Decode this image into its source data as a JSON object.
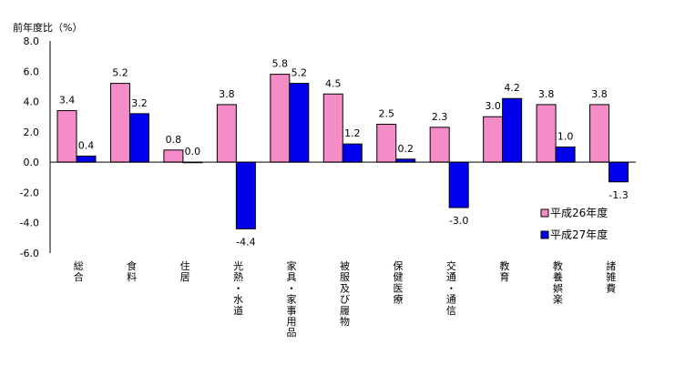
{
  "chart_data": {
    "type": "bar",
    "ylabel": "前年度比（%）",
    "ylim": [
      -6.0,
      8.0
    ],
    "ytick_step": 2.0,
    "yticks": [
      "8.0",
      "6.0",
      "4.0",
      "2.0",
      "0.0",
      "-2.0",
      "-4.0",
      "-6.0"
    ],
    "categories": [
      "総合",
      "食料",
      "住居",
      "光熱・水道",
      "家具・家事用品",
      "被服及び履物",
      "保健医療",
      "交通・通信",
      "教育",
      "教養娯楽",
      "諸雑費"
    ],
    "series": [
      {
        "name": "平成26年度",
        "color": "#f48cc8",
        "values": [
          3.4,
          5.2,
          0.8,
          3.8,
          5.8,
          4.5,
          2.5,
          2.3,
          3.0,
          3.8,
          3.8
        ],
        "labels": [
          "3.4",
          "5.2",
          "0.8",
          "3.8",
          "5.8",
          "4.5",
          "2.5",
          "2.3",
          "3.0",
          "3.8",
          "3.8"
        ]
      },
      {
        "name": "平成27年度",
        "color": "#0000ee",
        "values": [
          0.4,
          3.2,
          0.0,
          -4.4,
          5.2,
          1.2,
          0.2,
          -3.0,
          4.2,
          1.0,
          -1.3
        ],
        "labels": [
          "0.4",
          "3.2",
          "0.0",
          "-4.4",
          "5.2",
          "1.2",
          "0.2",
          "-3.0",
          "4.2",
          "1.0",
          "-1.3"
        ]
      }
    ],
    "legend": "bottom-right inside plot"
  }
}
